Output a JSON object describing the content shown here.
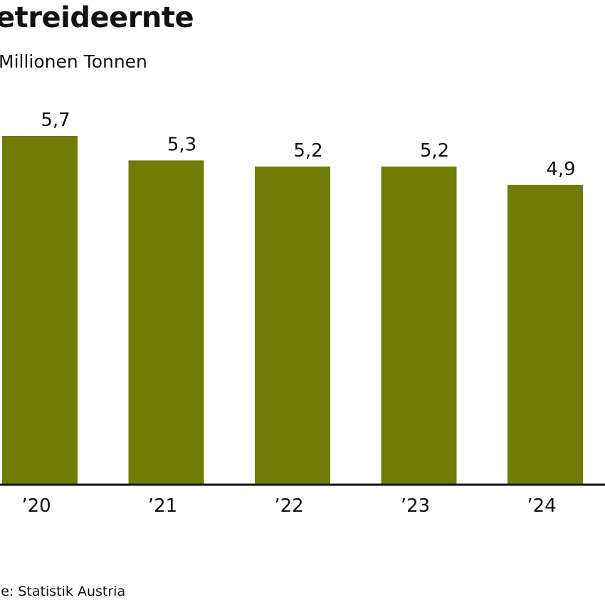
{
  "title": "etreideernte",
  "subtitle": "Millionen Tonnen",
  "source": "le: Statistik Austria",
  "colors": {
    "bar": "#6f7c06",
    "axis": "#111111"
  },
  "chart_data": {
    "type": "bar",
    "title": "etreideernte",
    "ylabel": "Millionen Tonnen",
    "categories": [
      "’20",
      "’21",
      "’22",
      "’23",
      "’24"
    ],
    "values": [
      5.7,
      5.3,
      5.2,
      5.2,
      4.9
    ],
    "value_labels": [
      "5,7",
      "5,3",
      "5,2",
      "5,2",
      "4,9"
    ],
    "ylim": [
      0,
      5.7
    ],
    "grid": false,
    "legend": "none"
  }
}
